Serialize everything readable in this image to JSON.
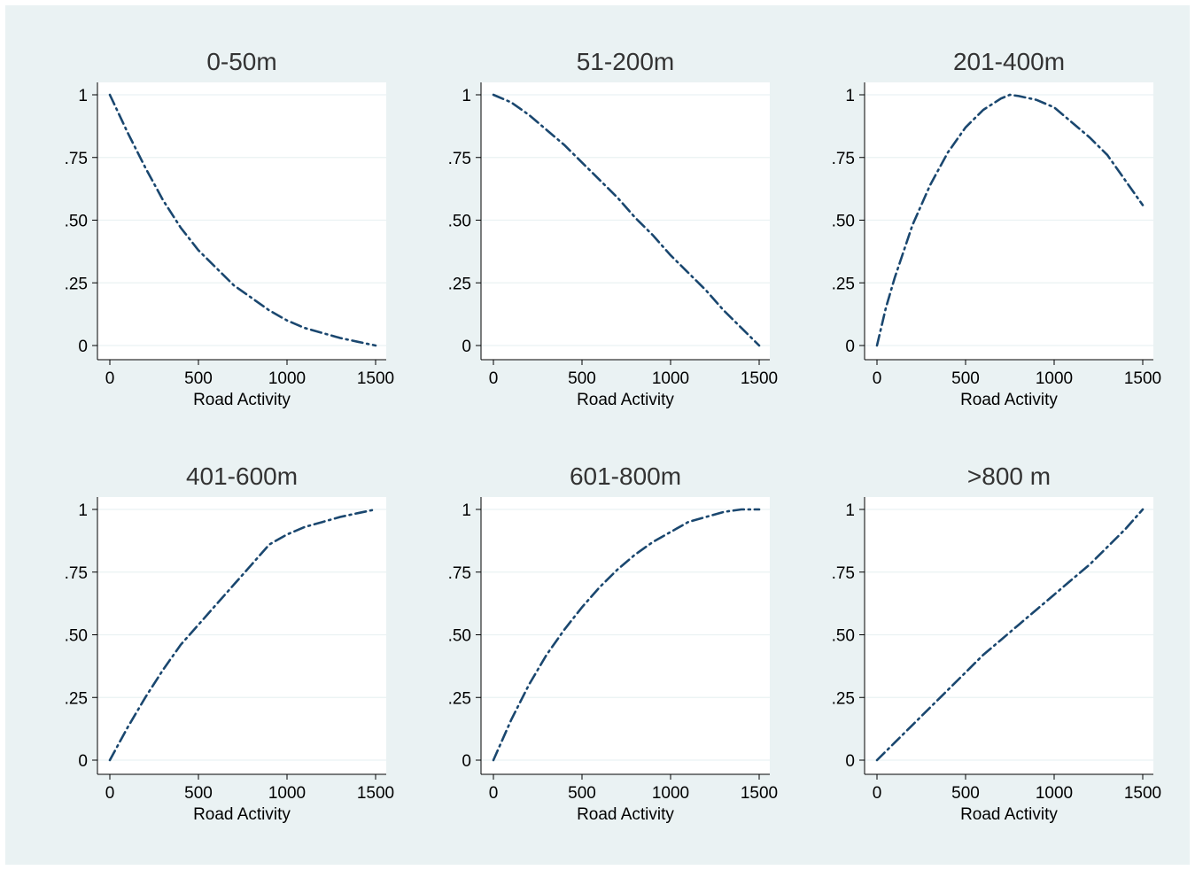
{
  "chart_data": [
    {
      "type": "line",
      "title": "0-50m",
      "xlabel": "Road Activity",
      "ylabel": "",
      "xlim": [
        0,
        1500
      ],
      "ylim": [
        0,
        1
      ],
      "xticks": [
        0,
        500,
        1000,
        1500
      ],
      "yticks": [
        0,
        0.25,
        0.5,
        0.75,
        1
      ],
      "xtick_labels": [
        "0",
        "500",
        "1000",
        "1500"
      ],
      "ytick_labels": [
        "0",
        ".25",
        ".50",
        ".75",
        "1"
      ],
      "grid": true,
      "series": [
        {
          "x": [
            0,
            100,
            200,
            300,
            400,
            500,
            600,
            700,
            800,
            900,
            1000,
            1100,
            1200,
            1300,
            1400,
            1500
          ],
          "y": [
            1.0,
            0.85,
            0.71,
            0.58,
            0.47,
            0.38,
            0.31,
            0.24,
            0.19,
            0.14,
            0.1,
            0.07,
            0.05,
            0.03,
            0.015,
            0.0
          ]
        }
      ]
    },
    {
      "type": "line",
      "title": "51-200m",
      "xlabel": "Road Activity",
      "ylabel": "",
      "xlim": [
        0,
        1500
      ],
      "ylim": [
        0,
        1
      ],
      "xticks": [
        0,
        500,
        1000,
        1500
      ],
      "yticks": [
        0,
        0.25,
        0.5,
        0.75,
        1
      ],
      "xtick_labels": [
        "0",
        "500",
        "1000",
        "1500"
      ],
      "ytick_labels": [
        "0",
        ".25",
        ".50",
        ".75",
        "1"
      ],
      "grid": true,
      "series": [
        {
          "x": [
            0,
            100,
            200,
            300,
            400,
            500,
            600,
            700,
            800,
            900,
            1000,
            1100,
            1200,
            1300,
            1400,
            1500
          ],
          "y": [
            1.0,
            0.97,
            0.92,
            0.86,
            0.8,
            0.73,
            0.66,
            0.59,
            0.51,
            0.44,
            0.36,
            0.29,
            0.22,
            0.14,
            0.07,
            0.0
          ]
        }
      ]
    },
    {
      "type": "line",
      "title": "201-400m",
      "xlabel": "Road Activity",
      "ylabel": "",
      "xlim": [
        0,
        1500
      ],
      "ylim": [
        0,
        1
      ],
      "xticks": [
        0,
        500,
        1000,
        1500
      ],
      "yticks": [
        0,
        0.25,
        0.5,
        0.75,
        1
      ],
      "xtick_labels": [
        "0",
        "500",
        "1000",
        "1500"
      ],
      "ytick_labels": [
        "0",
        ".25",
        ".50",
        ".75",
        "1"
      ],
      "grid": true,
      "series": [
        {
          "x": [
            0,
            50,
            100,
            200,
            300,
            400,
            500,
            600,
            700,
            750,
            800,
            900,
            1000,
            1100,
            1200,
            1300,
            1400,
            1500
          ],
          "y": [
            0.0,
            0.15,
            0.27,
            0.48,
            0.64,
            0.77,
            0.87,
            0.94,
            0.985,
            1.0,
            0.995,
            0.98,
            0.95,
            0.89,
            0.83,
            0.76,
            0.66,
            0.56
          ]
        }
      ]
    },
    {
      "type": "line",
      "title": "401-600m",
      "xlabel": "Road Activity",
      "ylabel": "",
      "xlim": [
        0,
        1500
      ],
      "ylim": [
        0,
        1
      ],
      "xticks": [
        0,
        500,
        1000,
        1500
      ],
      "yticks": [
        0,
        0.25,
        0.5,
        0.75,
        1
      ],
      "xtick_labels": [
        "0",
        "500",
        "1000",
        "1500"
      ],
      "ytick_labels": [
        "0",
        ".25",
        ".50",
        ".75",
        "1"
      ],
      "grid": true,
      "series": [
        {
          "x": [
            0,
            100,
            200,
            300,
            400,
            500,
            600,
            700,
            800,
            900,
            1000,
            1100,
            1200,
            1300,
            1400,
            1500
          ],
          "y": [
            0.0,
            0.13,
            0.25,
            0.36,
            0.46,
            0.54,
            0.62,
            0.7,
            0.78,
            0.86,
            0.9,
            0.93,
            0.95,
            0.97,
            0.985,
            1.0
          ]
        }
      ]
    },
    {
      "type": "line",
      "title": "601-800m",
      "xlabel": "Road Activity",
      "ylabel": "",
      "xlim": [
        0,
        1500
      ],
      "ylim": [
        0,
        1
      ],
      "xticks": [
        0,
        500,
        1000,
        1500
      ],
      "yticks": [
        0,
        0.25,
        0.5,
        0.75,
        1
      ],
      "xtick_labels": [
        "0",
        "500",
        "1000",
        "1500"
      ],
      "ytick_labels": [
        "0",
        ".25",
        ".50",
        ".75",
        "1"
      ],
      "grid": true,
      "series": [
        {
          "x": [
            0,
            100,
            200,
            300,
            400,
            500,
            600,
            700,
            800,
            900,
            1000,
            1100,
            1200,
            1300,
            1400,
            1500
          ],
          "y": [
            0.0,
            0.16,
            0.3,
            0.42,
            0.52,
            0.61,
            0.69,
            0.76,
            0.82,
            0.87,
            0.91,
            0.95,
            0.97,
            0.99,
            1.0,
            1.0
          ]
        }
      ]
    },
    {
      "type": "line",
      "title": ">800 m",
      "xlabel": "Road Activity",
      "ylabel": "",
      "xlim": [
        0,
        1500
      ],
      "ylim": [
        0,
        1
      ],
      "xticks": [
        0,
        500,
        1000,
        1500
      ],
      "yticks": [
        0,
        0.25,
        0.5,
        0.75,
        1
      ],
      "xtick_labels": [
        "0",
        "500",
        "1000",
        "1500"
      ],
      "ytick_labels": [
        "0",
        ".25",
        ".50",
        ".75",
        "1"
      ],
      "grid": true,
      "series": [
        {
          "x": [
            0,
            100,
            200,
            300,
            400,
            500,
            600,
            700,
            800,
            900,
            1000,
            1100,
            1200,
            1300,
            1400,
            1500
          ],
          "y": [
            0.0,
            0.07,
            0.14,
            0.21,
            0.28,
            0.35,
            0.42,
            0.48,
            0.54,
            0.6,
            0.66,
            0.72,
            0.78,
            0.85,
            0.92,
            1.0
          ]
        }
      ]
    }
  ],
  "colors": {
    "background": "#eaf2f3",
    "plot_region": "#ffffff",
    "series": "#1a476f",
    "title": "#333333"
  }
}
